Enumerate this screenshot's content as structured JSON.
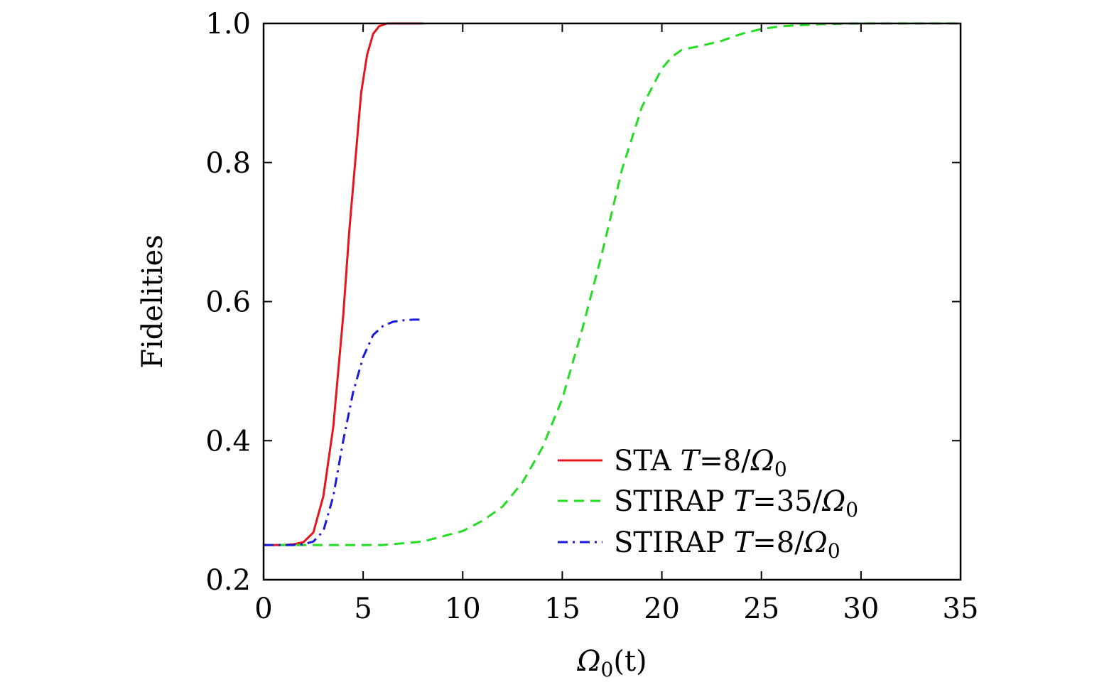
{
  "chart_data": {
    "type": "line",
    "title": "",
    "xlabel": "Ω0(t)",
    "xlabel_main": "Ω",
    "xlabel_sub": "0",
    "xlabel_tail": "(t)",
    "ylabel": "Fidelities",
    "xlim": [
      0,
      35
    ],
    "ylim": [
      0.2,
      1.0
    ],
    "x_ticks": [
      0,
      5,
      10,
      15,
      20,
      25,
      30,
      35
    ],
    "x_tick_labels": [
      "0",
      "5",
      "10",
      "15",
      "20",
      "25",
      "30",
      "35"
    ],
    "y_ticks": [
      0.2,
      0.4,
      0.6,
      0.8,
      1.0
    ],
    "y_tick_labels": [
      "0.2",
      "0.4",
      "0.6",
      "0.8",
      "1.0"
    ],
    "grid": false,
    "legend_position": "bottom-right",
    "series": [
      {
        "name": "STA T=8/Ω0",
        "legend_prefix": "STA ",
        "legend_value": "8",
        "color": "#e8141c",
        "style": "solid",
        "x": [
          0,
          1.0,
          1.5,
          2.0,
          2.5,
          3.0,
          3.5,
          4.0,
          4.3,
          4.6,
          4.9,
          5.2,
          5.5,
          5.8,
          6.2,
          6.8,
          8.0
        ],
        "y": [
          0.25,
          0.25,
          0.251,
          0.254,
          0.268,
          0.32,
          0.42,
          0.58,
          0.7,
          0.8,
          0.9,
          0.955,
          0.985,
          0.996,
          1.0,
          1.0,
          1.0
        ]
      },
      {
        "name": "STIRAP T=35/Ω0",
        "legend_prefix": "STIRAP ",
        "legend_value": "35",
        "color": "#22dd22",
        "style": "dashed",
        "x": [
          0,
          2,
          4,
          6,
          8,
          10,
          11,
          12,
          13,
          14,
          15,
          16,
          17,
          18,
          19,
          20,
          20.5,
          21,
          22,
          23,
          24,
          25,
          26,
          28,
          30,
          33,
          35
        ],
        "y": [
          0.25,
          0.25,
          0.25,
          0.25,
          0.255,
          0.27,
          0.285,
          0.305,
          0.34,
          0.39,
          0.46,
          0.56,
          0.67,
          0.79,
          0.88,
          0.935,
          0.952,
          0.962,
          0.968,
          0.975,
          0.985,
          0.992,
          0.996,
          0.999,
          1.0,
          1.0,
          1.0
        ]
      },
      {
        "name": "STIRAP T=8/Ω0",
        "legend_prefix": "STIRAP ",
        "legend_value": "8",
        "color": "#1a1adb",
        "style": "dashdot",
        "x": [
          0,
          1.5,
          2.0,
          2.5,
          3.0,
          3.5,
          4.0,
          4.5,
          5.0,
          5.5,
          6.0,
          6.5,
          7.0,
          7.5,
          8.0
        ],
        "y": [
          0.25,
          0.25,
          0.251,
          0.255,
          0.27,
          0.32,
          0.4,
          0.47,
          0.52,
          0.552,
          0.565,
          0.571,
          0.573,
          0.574,
          0.574
        ]
      }
    ]
  }
}
